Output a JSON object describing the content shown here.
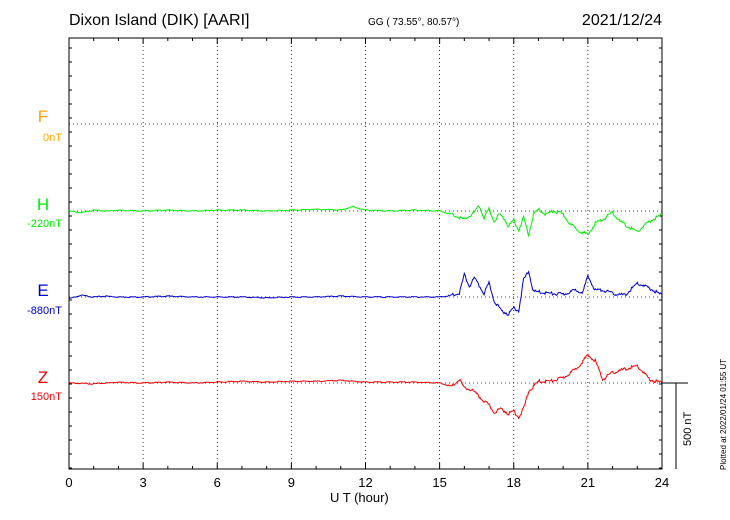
{
  "header": {
    "station": "Dixon Island (DIK)  [AARI]",
    "gg": "GG ( 73.55°,  80.57°)",
    "date": "2021/12/24"
  },
  "plotted_note": "Plotted at 2022/01/24 01:55 UT",
  "scale_bar": {
    "label": "500 nT",
    "value_nT": 500
  },
  "colors": {
    "F": "#FFA500",
    "H": "#00EE00",
    "E": "#0000CC",
    "Z": "#EE0000"
  },
  "chart_data": {
    "type": "line",
    "title": "Dixon Island (DIK)  [AARI]",
    "xlabel": "U T (hour)",
    "xlim": [
      0,
      24
    ],
    "xticks": [
      "0",
      "3",
      "6",
      "9",
      "12",
      "15",
      "18",
      "21",
      "24"
    ],
    "grid": true,
    "channels": [
      {
        "name": "F",
        "baseline": "0nT",
        "values": []
      },
      {
        "name": "H",
        "baseline": "-220nT",
        "x": [
          0,
          0.5,
          1,
          1.5,
          2,
          3,
          4,
          5,
          6,
          7,
          8,
          9,
          10,
          11,
          11.5,
          12,
          13,
          14,
          15,
          15.5,
          15.8,
          16,
          16.2,
          16.4,
          16.6,
          16.8,
          17,
          17.2,
          17.4,
          17.6,
          17.8,
          18,
          18.2,
          18.4,
          18.6,
          18.8,
          19,
          19.3,
          19.6,
          20,
          20.3,
          20.6,
          21,
          21.3,
          21.6,
          22,
          22.3,
          22.6,
          23,
          23.5,
          24
        ],
        "values": [
          0,
          -10,
          5,
          0,
          5,
          0,
          5,
          0,
          5,
          5,
          0,
          5,
          10,
          5,
          25,
          5,
          0,
          5,
          0,
          -20,
          -40,
          -50,
          -30,
          -10,
          30,
          -40,
          10,
          -60,
          -20,
          -40,
          -90,
          -50,
          -110,
          -40,
          -140,
          -20,
          10,
          -20,
          0,
          -20,
          -80,
          -110,
          -140,
          -70,
          -50,
          -10,
          -60,
          -90,
          -120,
          -60,
          -20
        ]
      },
      {
        "name": "E",
        "baseline": "-880nT",
        "x": [
          0,
          0.5,
          1,
          1.5,
          2,
          3,
          4,
          5,
          6,
          7,
          8,
          9,
          10,
          11,
          12,
          13,
          14,
          15,
          15.5,
          15.8,
          16,
          16.2,
          16.4,
          16.8,
          17,
          17.2,
          17.5,
          17.8,
          18,
          18.2,
          18.4,
          18.6,
          18.8,
          19,
          19.5,
          20,
          20.5,
          20.8,
          21,
          21.3,
          21.6,
          22,
          22.5,
          23,
          23.5,
          24
        ],
        "values": [
          -10,
          10,
          0,
          5,
          0,
          0,
          5,
          0,
          0,
          0,
          -5,
          0,
          0,
          5,
          0,
          0,
          0,
          0,
          10,
          20,
          130,
          60,
          110,
          20,
          80,
          -20,
          -80,
          -100,
          -60,
          -80,
          100,
          150,
          30,
          30,
          20,
          15,
          40,
          30,
          120,
          40,
          40,
          20,
          10,
          80,
          50,
          10
        ]
      },
      {
        "name": "Z",
        "baseline": "150nT",
        "x": [
          0,
          1,
          2,
          3,
          4,
          5,
          6,
          7,
          8,
          9,
          10,
          11,
          12,
          13,
          14,
          15,
          15.5,
          15.8,
          16,
          16.3,
          16.6,
          17,
          17.2,
          17.5,
          17.8,
          18,
          18.2,
          18.4,
          18.6,
          18.8,
          19,
          19.5,
          20,
          20.5,
          21,
          21.3,
          21.6,
          22,
          22.5,
          23,
          23.5,
          24
        ],
        "values": [
          0,
          -5,
          5,
          0,
          5,
          0,
          5,
          10,
          5,
          10,
          10,
          15,
          5,
          5,
          5,
          0,
          -20,
          20,
          -30,
          -40,
          -80,
          -130,
          -170,
          -150,
          -180,
          -160,
          -200,
          -150,
          -50,
          -20,
          10,
          10,
          30,
          80,
          160,
          130,
          20,
          60,
          80,
          100,
          20,
          0
        ]
      }
    ]
  }
}
